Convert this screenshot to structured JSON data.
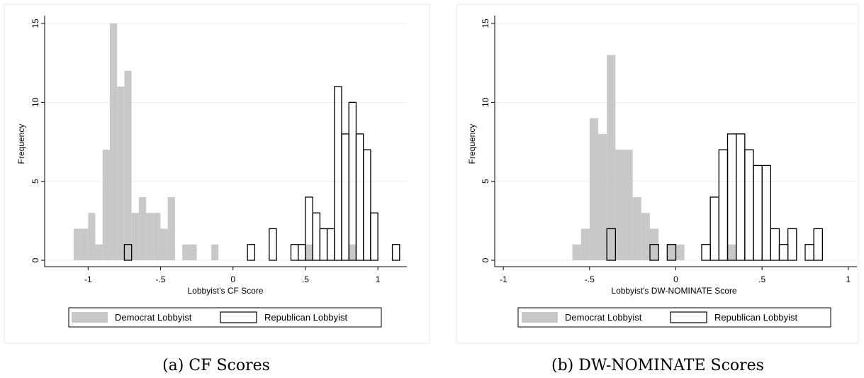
{
  "chart_data": [
    {
      "type": "bar",
      "caption": "(a) CF Scores",
      "xlabel": "Lobbyist's CF Score",
      "ylabel": "Frequency",
      "xlim": [
        -1.3,
        1.2
      ],
      "ylim": [
        0,
        15
      ],
      "xticks": [
        -1,
        -0.5,
        0,
        0.5,
        1
      ],
      "xtick_labels": [
        "-1",
        "-.5",
        "0",
        ".5",
        "1"
      ],
      "yticks": [
        0,
        5,
        10,
        15
      ],
      "ytick_labels": [
        "0",
        "5",
        "10",
        "15"
      ],
      "bin_width": 0.05,
      "grid": true,
      "legend_position": "bottom",
      "series": [
        {
          "name": "Democrat Lobbyist",
          "style": "filled",
          "color": "#c8c8c8",
          "x": [
            -1.1,
            -1.05,
            -1.0,
            -0.95,
            -0.9,
            -0.85,
            -0.8,
            -0.75,
            -0.7,
            -0.65,
            -0.6,
            -0.55,
            -0.5,
            -0.45,
            -0.4,
            -0.35,
            -0.3,
            -0.15,
            0.5,
            0.8
          ],
          "values": [
            2,
            2,
            3,
            1,
            7,
            15,
            11,
            12,
            3,
            4,
            3,
            3,
            2,
            4,
            0,
            1,
            1,
            1,
            1,
            1
          ]
        },
        {
          "name": "Republican Lobbyist",
          "style": "outline",
          "color": "#000000",
          "x": [
            -0.75,
            0.1,
            0.25,
            0.4,
            0.45,
            0.5,
            0.55,
            0.6,
            0.65,
            0.7,
            0.75,
            0.8,
            0.85,
            0.9,
            0.95,
            1.1
          ],
          "values": [
            1,
            1,
            2,
            1,
            1,
            4,
            3,
            2,
            2,
            11,
            8,
            10,
            8,
            7,
            3,
            1
          ]
        }
      ]
    },
    {
      "type": "bar",
      "caption": "(b) DW-NOMINATE Scores",
      "xlabel": "Lobbyist's DW-NOMINATE Score",
      "ylabel": "Frequency",
      "xlim": [
        -1.05,
        1.05
      ],
      "ylim": [
        0,
        15
      ],
      "xticks": [
        -1,
        -0.5,
        0,
        0.5,
        1
      ],
      "xtick_labels": [
        "-1",
        "-.5",
        "0",
        ".5",
        "1"
      ],
      "yticks": [
        0,
        5,
        10,
        15
      ],
      "yticks_labels_note": "",
      "ytick_labels": [
        "0",
        "5",
        "10",
        "15"
      ],
      "bin_width": 0.05,
      "grid": true,
      "legend_position": "bottom",
      "series": [
        {
          "name": "Democrat Lobbyist",
          "style": "filled",
          "color": "#c8c8c8",
          "x": [
            -0.6,
            -0.55,
            -0.5,
            -0.45,
            -0.4,
            -0.35,
            -0.3,
            -0.25,
            -0.2,
            -0.15,
            -0.05,
            0.0,
            0.3
          ],
          "values": [
            1,
            2,
            9,
            8,
            13,
            7,
            7,
            4,
            3,
            2,
            1,
            1,
            1
          ]
        },
        {
          "name": "Republican Lobbyist",
          "style": "outline",
          "color": "#000000",
          "x": [
            -0.4,
            -0.15,
            -0.05,
            0.15,
            0.2,
            0.25,
            0.3,
            0.35,
            0.4,
            0.45,
            0.5,
            0.55,
            0.6,
            0.65,
            0.75,
            0.8
          ],
          "values": [
            2,
            1,
            1,
            1,
            4,
            7,
            8,
            8,
            7,
            6,
            6,
            2,
            1,
            2,
            1,
            2
          ]
        }
      ]
    }
  ]
}
